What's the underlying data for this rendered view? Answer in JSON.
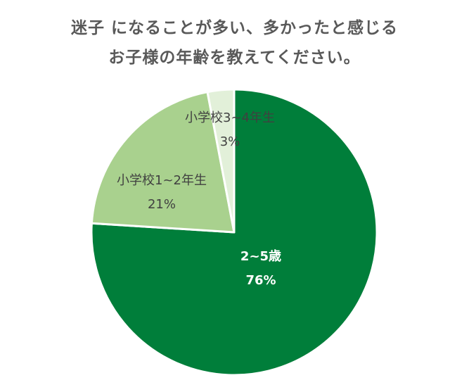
{
  "chart_data": {
    "type": "pie",
    "title_lines": [
      "迷子 になることが多い、多かったと感じる",
      "お子様の年齢を教えてください。"
    ],
    "start_angle_deg": 0,
    "direction": "clockwise",
    "slices": [
      {
        "label": "2~5歳",
        "value": 76,
        "value_label": "76%",
        "color": "#007e3a",
        "text_color": "#ffffff",
        "bold": true
      },
      {
        "label": "小学校1~2年生",
        "value": 21,
        "value_label": "21%",
        "color": "#a9d18e",
        "text_color": "#404040",
        "bold": false
      },
      {
        "label": "小学校3~4年生",
        "value": 3,
        "value_label": "3%",
        "color": "#e2f0d9",
        "text_color": "#404040",
        "bold": false
      }
    ]
  }
}
